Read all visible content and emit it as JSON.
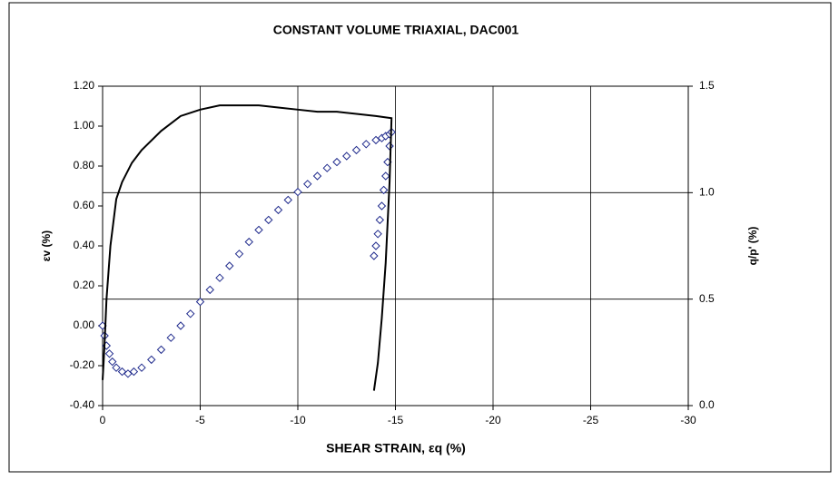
{
  "chart_data": {
    "type": "scatter",
    "title": "CONSTANT VOLUME TRIAXIAL, DAC001",
    "x_label": "SHEAR STRAIN, εq (%)",
    "y_label": "εv (%)",
    "y2_label": "q/p'  (%)",
    "xlim": [
      0,
      -30
    ],
    "xticks": [
      0,
      -5,
      -10,
      -15,
      -20,
      -25,
      -30
    ],
    "ylim": [
      -0.4,
      1.2
    ],
    "yticks": [
      {
        "value": 1.2,
        "label": "1.20"
      },
      {
        "value": 1,
        "label": "1.00"
      },
      {
        "value": 0.8,
        "label": "0.80"
      },
      {
        "value": 0.6,
        "label": "0.60"
      },
      {
        "value": 0.4,
        "label": "0.40"
      },
      {
        "value": 0.2,
        "label": "0.20"
      },
      {
        "value": 0,
        "label": "0.00"
      },
      {
        "value": -0.2,
        "label": "-0.20"
      },
      {
        "value": -0.4,
        "label": "-0.40"
      }
    ],
    "y2lim": [
      0,
      1.5
    ],
    "y2ticks": [
      1.5,
      {
        "value": 1,
        "label": "1.0"
      },
      0.5,
      {
        "value": 0,
        "label": "0.0"
      }
    ],
    "grid": true,
    "series": [
      {
        "color": "#1f2a8c",
        "marker": "diamond",
        "x": [
          0,
          -0.1,
          -0.2,
          -0.35,
          -0.5,
          -0.7,
          -1,
          -1.3,
          -1.6,
          -2,
          -2.5,
          -3,
          -3.5,
          -4,
          -4.5,
          -5,
          -5.5,
          -6,
          -6.5,
          -7,
          -7.5,
          -8,
          -8.5,
          -9,
          -9.5,
          -10,
          -10.5,
          -11,
          -11.5,
          -12,
          -12.5,
          -13,
          -13.5,
          -14,
          -14.3,
          -14.5,
          -14.7,
          -14.8,
          -14.7,
          -14.6,
          -14.5,
          -14.4,
          -14.3,
          -14.2,
          -14.1,
          -14.0,
          -13.9
        ],
        "values": [
          0,
          -0.05,
          -0.1,
          -0.14,
          -0.18,
          -0.21,
          -0.23,
          -0.24,
          -0.23,
          -0.21,
          -0.17,
          -0.12,
          -0.06,
          0,
          0.06,
          0.12,
          0.18,
          0.24,
          0.3,
          0.36,
          0.42,
          0.48,
          0.53,
          0.58,
          0.63,
          0.67,
          0.71,
          0.75,
          0.79,
          0.82,
          0.85,
          0.88,
          0.91,
          0.93,
          0.94,
          0.95,
          0.96,
          0.97,
          0.9,
          0.82,
          0.75,
          0.68,
          0.6,
          0.53,
          0.46,
          0.4,
          0.35
        ]
      },
      {
        "color": "#000000",
        "marker": "line",
        "axis": "y2",
        "x": [
          0,
          -0.05,
          -0.1,
          -0.2,
          -0.4,
          -0.7,
          -1,
          -1.5,
          -2,
          -3,
          -4,
          -5,
          -6,
          -7,
          -8,
          -9,
          -10,
          -11,
          -12,
          -13,
          -14,
          -14.8,
          -14.7,
          -14.5,
          -14.3,
          -14.1,
          -13.9
        ],
        "values": [
          0.12,
          0.2,
          0.29,
          0.5,
          0.75,
          0.97,
          1.05,
          1.14,
          1.2,
          1.29,
          1.36,
          1.39,
          1.41,
          1.41,
          1.41,
          1.4,
          1.39,
          1.38,
          1.38,
          1.37,
          1.36,
          1.35,
          1.05,
          0.67,
          0.41,
          0.2,
          0.07
        ]
      }
    ]
  }
}
